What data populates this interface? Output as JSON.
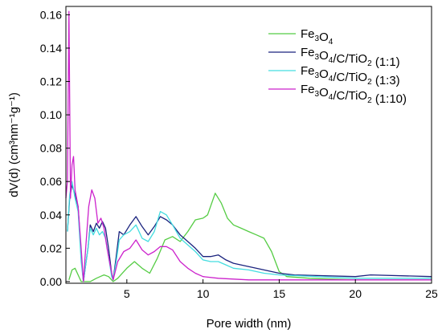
{
  "chart_data": {
    "type": "line",
    "xlabel": "Pore width (nm)",
    "ylabel": "dV(d) (cm³nm⁻¹g⁻¹)",
    "xlim": [
      1,
      25
    ],
    "ylim": [
      -0.001,
      0.165
    ],
    "xticks": [
      5,
      10,
      15,
      20,
      25
    ],
    "yticks": [
      0.0,
      0.02,
      0.04,
      0.06,
      0.08,
      0.1,
      0.12,
      0.14,
      0.16
    ],
    "ytick_labels": [
      "0.00",
      "0.02",
      "0.04",
      "0.06",
      "0.08",
      "0.10",
      "0.12",
      "0.14",
      "0.16"
    ],
    "xtick_labels": [
      "5",
      "10",
      "15",
      "20",
      "25"
    ],
    "grid": false,
    "legend_position": "top-right",
    "series": [
      {
        "name": "Fe3O4",
        "color": "#55cc44",
        "points": [
          [
            1.2,
            0.001
          ],
          [
            1.4,
            0.007
          ],
          [
            1.6,
            0.008
          ],
          [
            1.8,
            0.004
          ],
          [
            2.0,
            0.0
          ],
          [
            2.6,
            0.0
          ],
          [
            3.0,
            0.002
          ],
          [
            3.5,
            0.004
          ],
          [
            3.8,
            0.003
          ],
          [
            4.1,
            0.0
          ],
          [
            4.4,
            0.002
          ],
          [
            5.0,
            0.008
          ],
          [
            5.5,
            0.012
          ],
          [
            6.0,
            0.008
          ],
          [
            6.5,
            0.005
          ],
          [
            7.0,
            0.014
          ],
          [
            7.5,
            0.025
          ],
          [
            8.0,
            0.027
          ],
          [
            8.5,
            0.024
          ],
          [
            9.0,
            0.03
          ],
          [
            9.5,
            0.037
          ],
          [
            10.0,
            0.038
          ],
          [
            10.3,
            0.04
          ],
          [
            10.8,
            0.053
          ],
          [
            11.2,
            0.047
          ],
          [
            11.6,
            0.038
          ],
          [
            12.0,
            0.034
          ],
          [
            12.5,
            0.032
          ],
          [
            13.0,
            0.03
          ],
          [
            13.5,
            0.028
          ],
          [
            14.0,
            0.026
          ],
          [
            14.5,
            0.018
          ],
          [
            15.0,
            0.006
          ],
          [
            15.5,
            0.003
          ],
          [
            17.0,
            0.002
          ],
          [
            20.0,
            0.001
          ],
          [
            25.0,
            0.001
          ]
        ]
      },
      {
        "name": "Fe3O4/C/TiO2 (1:1)",
        "color": "#1a237e",
        "points": [
          [
            1.1,
            0.03
          ],
          [
            1.25,
            0.05
          ],
          [
            1.4,
            0.058
          ],
          [
            1.6,
            0.052
          ],
          [
            1.8,
            0.045
          ],
          [
            2.0,
            0.015
          ],
          [
            2.15,
            0.0
          ],
          [
            2.3,
            0.01
          ],
          [
            2.45,
            0.02
          ],
          [
            2.6,
            0.034
          ],
          [
            2.8,
            0.03
          ],
          [
            3.0,
            0.035
          ],
          [
            3.2,
            0.032
          ],
          [
            3.4,
            0.036
          ],
          [
            3.6,
            0.032
          ],
          [
            3.8,
            0.02
          ],
          [
            4.0,
            0.005
          ],
          [
            4.1,
            0.001
          ],
          [
            4.3,
            0.015
          ],
          [
            4.5,
            0.03
          ],
          [
            4.8,
            0.028
          ],
          [
            5.2,
            0.034
          ],
          [
            5.6,
            0.039
          ],
          [
            6.0,
            0.033
          ],
          [
            6.4,
            0.028
          ],
          [
            6.8,
            0.033
          ],
          [
            7.2,
            0.039
          ],
          [
            7.6,
            0.037
          ],
          [
            8.0,
            0.034
          ],
          [
            8.5,
            0.028
          ],
          [
            9.0,
            0.024
          ],
          [
            9.5,
            0.02
          ],
          [
            10.0,
            0.015
          ],
          [
            10.5,
            0.015
          ],
          [
            11.0,
            0.016
          ],
          [
            11.5,
            0.013
          ],
          [
            12.0,
            0.011
          ],
          [
            13.0,
            0.009
          ],
          [
            14.0,
            0.007
          ],
          [
            15.0,
            0.005
          ],
          [
            16.0,
            0.004
          ],
          [
            20.0,
            0.003
          ],
          [
            21.0,
            0.004
          ],
          [
            25.0,
            0.003
          ]
        ]
      },
      {
        "name": "Fe3O4/C/TiO2 (1:3)",
        "color": "#44dde0",
        "points": [
          [
            1.1,
            0.03
          ],
          [
            1.25,
            0.052
          ],
          [
            1.4,
            0.06
          ],
          [
            1.6,
            0.05
          ],
          [
            1.8,
            0.042
          ],
          [
            2.0,
            0.012
          ],
          [
            2.15,
            0.0
          ],
          [
            2.3,
            0.01
          ],
          [
            2.45,
            0.02
          ],
          [
            2.6,
            0.032
          ],
          [
            2.8,
            0.028
          ],
          [
            3.0,
            0.032
          ],
          [
            3.2,
            0.028
          ],
          [
            3.4,
            0.03
          ],
          [
            3.6,
            0.026
          ],
          [
            3.8,
            0.015
          ],
          [
            4.0,
            0.003
          ],
          [
            4.1,
            0.001
          ],
          [
            4.3,
            0.012
          ],
          [
            4.5,
            0.025
          ],
          [
            4.8,
            0.028
          ],
          [
            5.2,
            0.03
          ],
          [
            5.6,
            0.034
          ],
          [
            6.0,
            0.026
          ],
          [
            6.4,
            0.024
          ],
          [
            6.8,
            0.03
          ],
          [
            7.2,
            0.042
          ],
          [
            7.6,
            0.04
          ],
          [
            8.0,
            0.034
          ],
          [
            8.5,
            0.026
          ],
          [
            9.0,
            0.022
          ],
          [
            9.5,
            0.018
          ],
          [
            10.0,
            0.013
          ],
          [
            10.5,
            0.012
          ],
          [
            11.0,
            0.012
          ],
          [
            11.5,
            0.01
          ],
          [
            12.0,
            0.008
          ],
          [
            13.0,
            0.007
          ],
          [
            14.0,
            0.005
          ],
          [
            15.0,
            0.004
          ],
          [
            20.0,
            0.002
          ],
          [
            25.0,
            0.002
          ]
        ]
      },
      {
        "name": "Fe3O4/C/TiO2 (1:10)",
        "color": "#cc22cc",
        "points": [
          [
            1.0,
            0.05
          ],
          [
            1.1,
            0.06
          ],
          [
            1.2,
            0.162
          ],
          [
            1.3,
            0.05
          ],
          [
            1.4,
            0.07
          ],
          [
            1.5,
            0.075
          ],
          [
            1.6,
            0.055
          ],
          [
            1.8,
            0.045
          ],
          [
            2.0,
            0.02
          ],
          [
            2.15,
            0.0
          ],
          [
            2.3,
            0.02
          ],
          [
            2.5,
            0.045
          ],
          [
            2.7,
            0.055
          ],
          [
            2.9,
            0.05
          ],
          [
            3.1,
            0.035
          ],
          [
            3.3,
            0.038
          ],
          [
            3.5,
            0.032
          ],
          [
            3.7,
            0.02
          ],
          [
            3.9,
            0.01
          ],
          [
            4.1,
            0.001
          ],
          [
            4.4,
            0.012
          ],
          [
            4.8,
            0.018
          ],
          [
            5.2,
            0.02
          ],
          [
            5.6,
            0.025
          ],
          [
            6.0,
            0.019
          ],
          [
            6.4,
            0.016
          ],
          [
            6.8,
            0.018
          ],
          [
            7.2,
            0.021
          ],
          [
            7.6,
            0.021
          ],
          [
            8.0,
            0.019
          ],
          [
            8.5,
            0.012
          ],
          [
            9.0,
            0.008
          ],
          [
            9.5,
            0.005
          ],
          [
            10.0,
            0.003
          ],
          [
            11.0,
            0.002
          ],
          [
            13.0,
            0.001
          ],
          [
            25.0,
            0.001
          ]
        ]
      }
    ],
    "legend": [
      {
        "base": "Fe",
        "s1": "3",
        "o": "O",
        "s2": "4",
        "rest": ""
      },
      {
        "base": "Fe",
        "s1": "3",
        "o": "O",
        "s2": "4",
        "mid": "/C/TiO",
        "s3": "2",
        "rest": " (1:1)"
      },
      {
        "base": "Fe",
        "s1": "3",
        "o": "O",
        "s2": "4",
        "mid": "/C/TiO",
        "s3": "2",
        "rest": " (1:3)"
      },
      {
        "base": "Fe",
        "s1": "3",
        "o": "O",
        "s2": "4",
        "mid": "/C/TiO",
        "s3": "2",
        "rest": " (1:10)"
      }
    ]
  }
}
